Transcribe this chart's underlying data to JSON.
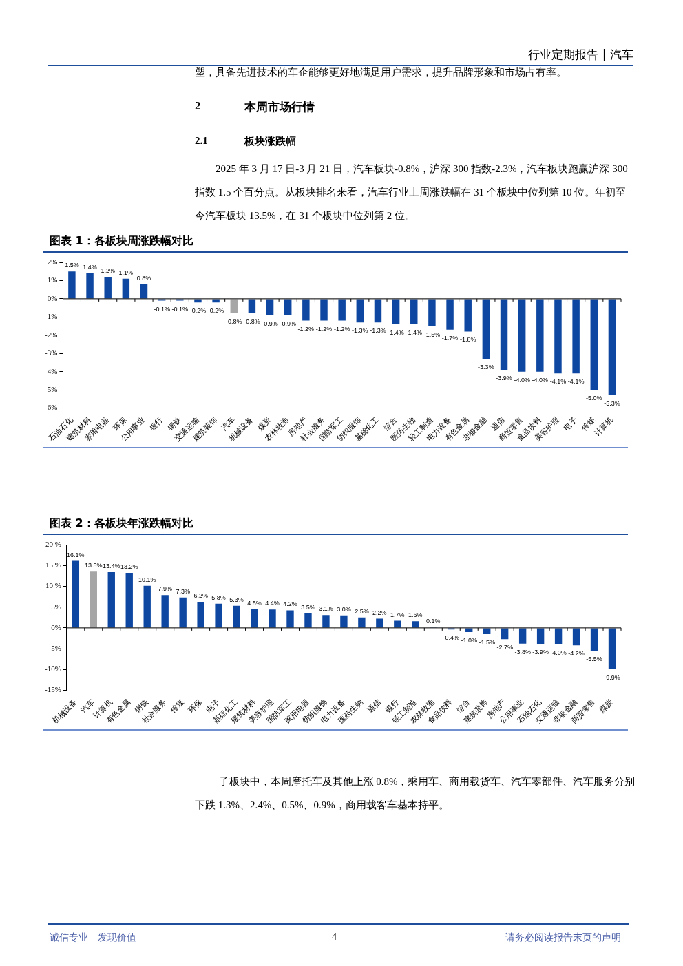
{
  "chart_data": [
    {
      "type": "other",
      "annotations": [
        "行业定期报告 | 汽车",
        "塑，具备先进技术的车企能够更好地满足用户需求，提升品牌形象和市场占有率。",
        "2",
        "本周市场行情",
        "2.1",
        "板块涨跌幅",
        "2025 年 3 月 17 日-3 月 21 日，汽车板块-0.8%，沪深 300 指数-2.3%，汽车板块跑赢沪深 300 指数 1.5 个百分点。从板块排名来看，汽车行业上周涨跌幅在 31 个板块中位列第 10 位。年初至今汽车板块 13.5%，在 31 个板块中位列第 2 位。"
      ]
    },
    {
      "type": "bar",
      "title": "图表 1：各板块周涨跌幅对比",
      "categories": [
        "石油石化",
        "建筑材料",
        "家用电器",
        "环保",
        "公用事业",
        "银行",
        "钢铁",
        "交通运输",
        "建筑装饰",
        "汽车",
        "机械设备",
        "煤炭",
        "农林牧渔",
        "房地产",
        "社会服务",
        "国防军工",
        "纺织服饰",
        "基础化工",
        "综合",
        "医药生物",
        "轻工制造",
        "电力设备",
        "有色金属",
        "非银金融",
        "通信",
        "商贸零售",
        "食品饮料",
        "美容护理",
        "电子",
        "传媒",
        "计算机"
      ],
      "values": [
        1.5,
        1.4,
        1.2,
        1.1,
        0.8,
        -0.1,
        -0.1,
        -0.2,
        -0.2,
        -0.8,
        -0.8,
        -0.9,
        -0.9,
        -1.2,
        -1.2,
        -1.2,
        -1.3,
        -1.3,
        -1.4,
        -1.4,
        -1.5,
        -1.7,
        -1.8,
        -3.3,
        -3.9,
        -4.0,
        -4.0,
        -4.1,
        -4.1,
        -5.0,
        -5.3
      ],
      "colors": [
        "#0d47a1",
        "#0d47a1",
        "#0d47a1",
        "#0d47a1",
        "#0d47a1",
        "#0d47a1",
        "#0d47a1",
        "#0d47a1",
        "#0d47a1",
        "#a6a6a6",
        "#0d47a1",
        "#0d47a1",
        "#0d47a1",
        "#0d47a1",
        "#0d47a1",
        "#0d47a1",
        "#0d47a1",
        "#0d47a1",
        "#0d47a1",
        "#0d47a1",
        "#0d47a1",
        "#0d47a1",
        "#0d47a1",
        "#0d47a1",
        "#0d47a1",
        "#0d47a1",
        "#0d47a1",
        "#0d47a1",
        "#0d47a1",
        "#0d47a1",
        "#0d47a1"
      ],
      "value_labels": [
        "1.5%",
        "1.4%",
        "1.2%",
        "1.1%",
        "0.8%",
        "-0.1%",
        "-0.1%",
        "-0.2%",
        "-0.2%",
        "-0.8%",
        "-0.8%",
        "-0.9%",
        "-0.9%",
        "-1.2%",
        "-1.2%",
        "-1.2%",
        "-1.3%",
        "-1.3%",
        "-1.4%",
        "-1.4%",
        "-1.5%",
        "-1.7%",
        "-1.8%",
        "-3.3%",
        "-3.9%",
        "-4.0%",
        "-4.0%",
        "-4.1%",
        "-4.1%",
        "-5.0%",
        "-5.3%"
      ],
      "ylim": [
        -6,
        2
      ],
      "yticks": [
        {
          "value": -6,
          "label": "-6%"
        },
        {
          "value": -5,
          "label": "-5%"
        },
        {
          "value": -4,
          "label": "-4%"
        },
        {
          "value": -3,
          "label": "-3%"
        },
        {
          "value": -2,
          "label": "-2%"
        },
        {
          "value": -1,
          "label": "-1%"
        },
        {
          "value": 0,
          "label": "0%"
        },
        {
          "value": 1,
          "label": "1%"
        },
        {
          "value": 2,
          "label": "2%"
        }
      ]
    },
    {
      "type": "bar",
      "title": "图表 2：各板块年涨跌幅对比",
      "categories": [
        "机械设备",
        "汽车",
        "计算机",
        "有色金属",
        "钢铁",
        "社会服务",
        "传媒",
        "环保",
        "电子",
        "基础化工",
        "建筑材料",
        "美容护理",
        "国防军工",
        "家用电器",
        "纺织服饰",
        "电力设备",
        "医药生物",
        "通信",
        "银行",
        "轻工制造",
        "农林牧渔",
        "食品饮料",
        "综合",
        "建筑装饰",
        "房地产",
        "公用事业",
        "石油石化",
        "交通运输",
        "非银金融",
        "商贸零售",
        "煤炭"
      ],
      "values": [
        16.1,
        13.5,
        13.4,
        13.2,
        10.1,
        7.9,
        7.3,
        6.2,
        5.8,
        5.3,
        4.5,
        4.4,
        4.2,
        3.5,
        3.1,
        3.0,
        2.5,
        2.2,
        1.7,
        1.6,
        0.1,
        -0.4,
        -1.0,
        -1.5,
        -2.7,
        -3.8,
        -3.9,
        -4.0,
        -4.2,
        -5.5,
        -9.9
      ],
      "colors": [
        "#0d47a1",
        "#a6a6a6",
        "#0d47a1",
        "#0d47a1",
        "#0d47a1",
        "#0d47a1",
        "#0d47a1",
        "#0d47a1",
        "#0d47a1",
        "#0d47a1",
        "#0d47a1",
        "#0d47a1",
        "#0d47a1",
        "#0d47a1",
        "#0d47a1",
        "#0d47a1",
        "#0d47a1",
        "#0d47a1",
        "#0d47a1",
        "#0d47a1",
        "#0d47a1",
        "#0d47a1",
        "#0d47a1",
        "#0d47a1",
        "#0d47a1",
        "#0d47a1",
        "#0d47a1",
        "#0d47a1",
        "#0d47a1",
        "#0d47a1",
        "#0d47a1"
      ],
      "value_labels": [
        "16.1%",
        "13.5%",
        "13.4%",
        "13.2%",
        "10.1%",
        "7.9%",
        "7.3%",
        "6.2%",
        "5.8%",
        "5.3%",
        "4.5%",
        "4.4%",
        "4.2%",
        "3.5%",
        "3.1%",
        "3.0%",
        "2.5%",
        "2.2%",
        "1.7%",
        "1.6%",
        "0.1%",
        "-0.4%",
        "-1.0%",
        "-1.5%",
        "-2.7%",
        "-3.8%",
        "-3.9%",
        "-4.0%",
        "-4.2%",
        "-5.5%",
        "-9.9%"
      ],
      "ylim": [
        -15,
        20
      ],
      "yticks": [
        {
          "value": -15,
          "label": "-15%"
        },
        {
          "value": -10,
          "label": "-10%"
        },
        {
          "value": -5,
          "label": "-5%"
        },
        {
          "value": 0,
          "label": "0%"
        },
        {
          "value": 5,
          "label": "5%"
        },
        {
          "value": 10,
          "label": "10 %"
        },
        {
          "value": 15,
          "label": "15 %"
        },
        {
          "value": 20,
          "label": "20 %"
        }
      ]
    },
    {
      "type": "other",
      "annotations": [
        "子板块中，本周摩托车及其他上涨 0.8%，乘用车、商用载货车、汽车零部件、汽车服务分别下跌 1.3%、2.4%、0.5%、0.9%，商用载客车基本持平。",
        "诚信专业　发现价值",
        "4",
        "请务必阅读报告末页的声明"
      ]
    }
  ]
}
